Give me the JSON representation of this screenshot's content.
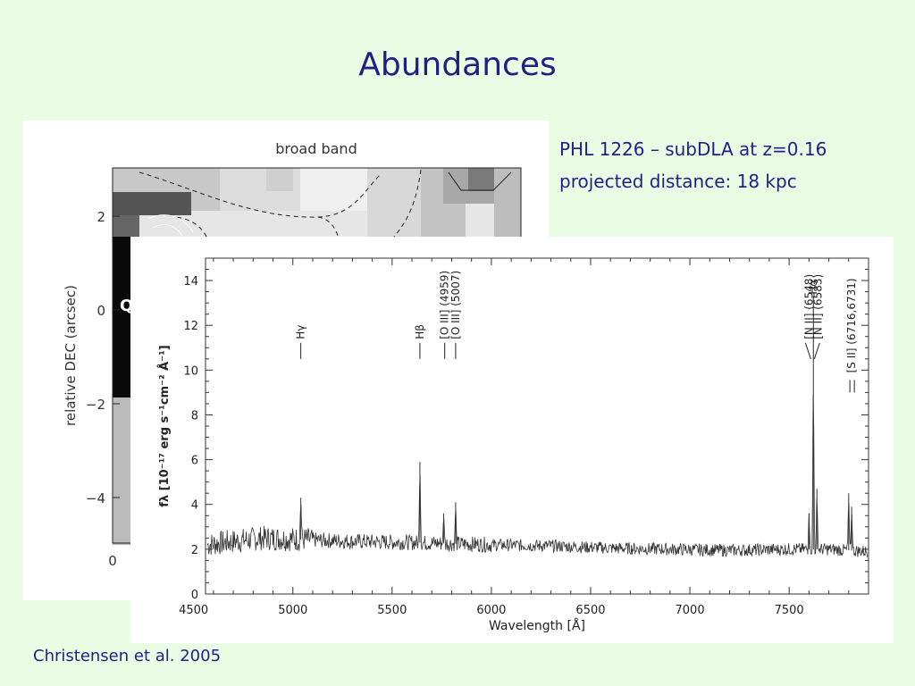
{
  "title": "Abundances",
  "caption": {
    "line1": "PHL 1226 – subDLA at z=0.16",
    "line2": "projected distance: 18 kpc"
  },
  "citation": "Christensen et al. 2005",
  "broadband": {
    "title": "broad band",
    "ylabel": "relative DEC (arcsec)",
    "yticks": [
      "2",
      "0",
      "−2",
      "−4"
    ],
    "xtick": "0",
    "marker": "Q"
  },
  "chart_data": {
    "type": "line",
    "title": "",
    "xlabel": "Wavelength [Å]",
    "ylabel": "fλ [10⁻¹⁷ erg s⁻¹cm⁻² Å⁻¹]",
    "xlim": [
      4560,
      7900
    ],
    "ylim": [
      0,
      15
    ],
    "xticks": [
      4500,
      5000,
      5500,
      6000,
      6500,
      7000,
      7500
    ],
    "yticks": [
      0,
      2,
      4,
      6,
      8,
      10,
      12,
      14
    ],
    "continuum": [
      [
        4570,
        2.2
      ],
      [
        4700,
        2.35
      ],
      [
        4850,
        2.5
      ],
      [
        5000,
        2.45
      ],
      [
        5300,
        2.35
      ],
      [
        5600,
        2.3
      ],
      [
        5800,
        2.25
      ],
      [
        6000,
        2.2
      ],
      [
        6300,
        2.15
      ],
      [
        6600,
        2.05
      ],
      [
        6900,
        2.0
      ],
      [
        7200,
        1.95
      ],
      [
        7500,
        2.0
      ],
      [
        7700,
        2.0
      ],
      [
        7900,
        1.9
      ]
    ],
    "emission_peaks": [
      {
        "x": 5040,
        "y": 4.3
      },
      {
        "x": 5640,
        "y": 5.9
      },
      {
        "x": 5760,
        "y": 3.6
      },
      {
        "x": 5820,
        "y": 4.1
      },
      {
        "x": 7600,
        "y": 3.6
      },
      {
        "x": 7622,
        "y": 10.3
      },
      {
        "x": 7640,
        "y": 4.7
      },
      {
        "x": 7800,
        "y": 4.5
      },
      {
        "x": 7815,
        "y": 3.9
      }
    ],
    "line_labels": [
      {
        "text": "Hγ",
        "x": 5040,
        "y": 10.5,
        "mark": "single"
      },
      {
        "text": "Hβ",
        "x": 5640,
        "y": 10.5,
        "mark": "single"
      },
      {
        "text": "[O III] (4959)",
        "x": 5765,
        "y": 10.5,
        "mark": "single"
      },
      {
        "text": "[O III] (5007)",
        "x": 5820,
        "y": 10.5,
        "mark": "single"
      },
      {
        "text": "[N II] (6548)",
        "x": 7600,
        "y": 10.5,
        "mark": "slash"
      },
      {
        "text": "Hα",
        "x": 7622,
        "y": 12.5,
        "mark": "long"
      },
      {
        "text": "[N II] (6583)",
        "x": 7645,
        "y": 10.5,
        "mark": "backslash"
      },
      {
        "text": "[S II] (6716,6731)",
        "x": 7815,
        "y": 9.0,
        "mark": "double"
      }
    ]
  }
}
